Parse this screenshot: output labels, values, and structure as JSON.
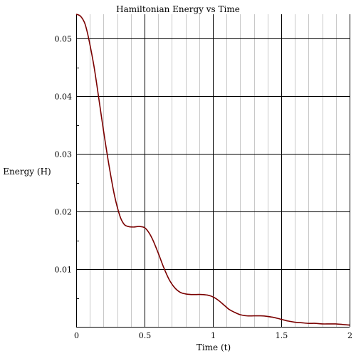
{
  "colors": {
    "line": "#7a0000",
    "major_grid": "#000000",
    "minor_grid": "#c8c8c8",
    "background": "#ffffff"
  },
  "chart_data": {
    "type": "line",
    "title": "Hamiltonian Energy vs Time",
    "xlabel": "Time (t)",
    "ylabel": "Energy (H)",
    "xlim": [
      0,
      2
    ],
    "ylim": [
      0,
      0.0542
    ],
    "grid": true,
    "legend": "none",
    "x_major_ticks": [
      0,
      0.5,
      1,
      1.5,
      2
    ],
    "x_tick_labels": [
      "0",
      "0.5",
      "1",
      "1.5",
      "2"
    ],
    "x_minor_ticks": [
      0.1,
      0.2,
      0.3,
      0.4,
      0.6,
      0.7,
      0.8,
      0.9,
      1.1,
      1.2,
      1.3,
      1.4,
      1.6,
      1.7,
      1.8,
      1.9
    ],
    "y_major_ticks": [
      0.01,
      0.02,
      0.03,
      0.04,
      0.05
    ],
    "y_tick_labels": [
      "0.01",
      "0.02",
      "0.03",
      "0.04",
      "0.05"
    ],
    "series": [
      {
        "x": [
          0,
          0.03,
          0.06,
          0.08,
          0.1,
          0.13,
          0.16,
          0.2,
          0.24,
          0.28,
          0.32,
          0.35,
          0.38,
          0.42,
          0.46,
          0.5,
          0.53,
          0.56,
          0.6,
          0.64,
          0.68,
          0.72,
          0.76,
          0.8,
          0.84,
          0.88,
          0.92,
          0.96,
          1.0,
          1.04,
          1.08,
          1.12,
          1.16,
          1.2,
          1.25,
          1.3,
          1.35,
          1.4,
          1.45,
          1.5,
          1.55,
          1.6,
          1.65,
          1.7,
          1.75,
          1.8,
          1.85,
          1.9,
          1.95,
          2.0
        ],
        "y": [
          0.0542,
          0.0539,
          0.0528,
          0.0512,
          0.049,
          0.0452,
          0.0405,
          0.034,
          0.028,
          0.0228,
          0.0192,
          0.0178,
          0.0174,
          0.0173,
          0.0174,
          0.0172,
          0.0164,
          0.0151,
          0.0128,
          0.0103,
          0.0082,
          0.0068,
          0.006,
          0.0057,
          0.0056,
          0.0056,
          0.0056,
          0.0055,
          0.0052,
          0.0046,
          0.0038,
          0.003,
          0.0025,
          0.0021,
          0.0019,
          0.0019,
          0.0019,
          0.0018,
          0.0016,
          0.0013,
          0.001,
          0.0008,
          0.0007,
          0.0006,
          0.0006,
          0.0005,
          0.0005,
          0.0005,
          0.0004,
          0.0003
        ]
      }
    ]
  }
}
